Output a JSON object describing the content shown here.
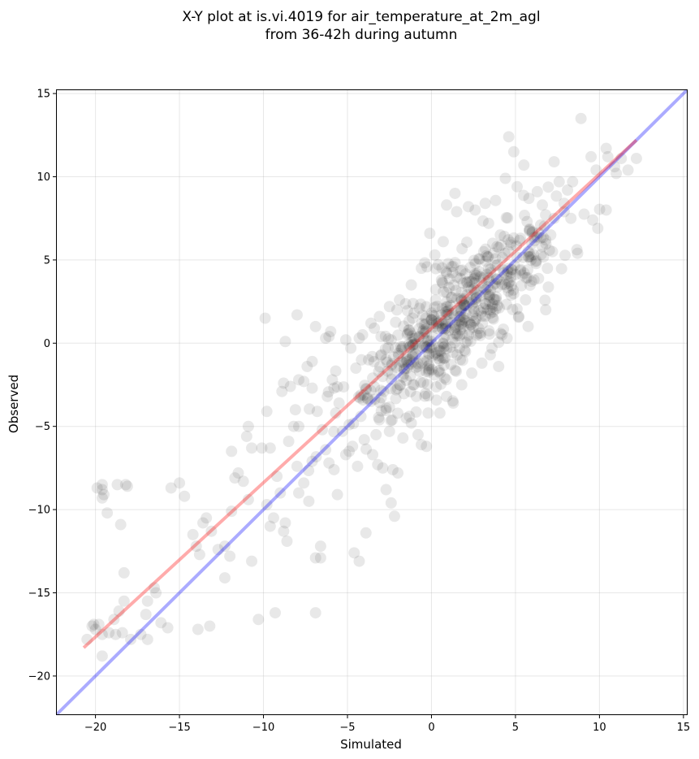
{
  "chart_data": {
    "type": "scatter",
    "title": [
      "X-Y plot at is.vi.4019 for air_temperature_at_2m_agl",
      "from 36-42h during autumn"
    ],
    "xlabel": "Simulated",
    "ylabel": "Observed",
    "xlim": [
      -22.3,
      15.2
    ],
    "ylim": [
      -22.3,
      15.2
    ],
    "xticks": [
      -20,
      -15,
      -10,
      -5,
      0,
      5,
      10,
      15
    ],
    "yticks": [
      -20,
      -15,
      -10,
      -5,
      0,
      5,
      10,
      15
    ],
    "xtick_labels": [
      "−20",
      "−15",
      "−10",
      "−5",
      "0",
      "5",
      "10",
      "15"
    ],
    "ytick_labels": [
      "−20",
      "−15",
      "−10",
      "−5",
      "0",
      "5",
      "10",
      "15"
    ],
    "grid": true,
    "point_color": "#000000",
    "point_opacity": 0.09,
    "reference_line": {
      "from": [
        -22.3,
        -22.3
      ],
      "to": [
        15.2,
        15.2
      ],
      "color": "#0000ff"
    },
    "fit_line": {
      "from": [
        -20.7,
        -18.3
      ],
      "to": [
        12.2,
        12.2
      ],
      "color": "#ff0000"
    },
    "dense_cluster": {
      "center": [
        1.2,
        1.4
      ],
      "spread_x": 2.9,
      "spread_y": 3.1,
      "count": 520
    },
    "points": [
      [
        -20.2,
        -17.0
      ],
      [
        -20.0,
        -17.2
      ],
      [
        -20.5,
        -17.8
      ],
      [
        -19.6,
        -17.5
      ],
      [
        -19.2,
        -17.4
      ],
      [
        -18.8,
        -17.5
      ],
      [
        -18.4,
        -17.4
      ],
      [
        -19.8,
        -16.9
      ],
      [
        -20.1,
        -16.9
      ],
      [
        -19.6,
        -18.8
      ],
      [
        -18.6,
        -16.1
      ],
      [
        -18.3,
        -15.5
      ],
      [
        -18.9,
        -16.6
      ],
      [
        -17.9,
        -17.8
      ],
      [
        -17.3,
        -17.5
      ],
      [
        -16.9,
        -17.8
      ],
      [
        -16.5,
        -14.7
      ],
      [
        -16.9,
        -15.5
      ],
      [
        -16.4,
        -15.0
      ],
      [
        -16.1,
        -16.8
      ],
      [
        -15.7,
        -17.1
      ],
      [
        -17.0,
        -16.3
      ],
      [
        -13.9,
        -17.2
      ],
      [
        -13.2,
        -17.0
      ],
      [
        -10.3,
        -16.6
      ],
      [
        -9.3,
        -16.2
      ],
      [
        -6.9,
        -16.2
      ],
      [
        -19.6,
        -8.5
      ],
      [
        -19.6,
        -8.8
      ],
      [
        -19.9,
        -8.7
      ],
      [
        -19.5,
        -9.1
      ],
      [
        -19.6,
        -9.3
      ],
      [
        -19.3,
        -10.2
      ],
      [
        -18.7,
        -8.5
      ],
      [
        -18.2,
        -8.5
      ],
      [
        -18.1,
        -8.6
      ],
      [
        -18.5,
        -10.9
      ],
      [
        -18.3,
        -13.8
      ],
      [
        -15.5,
        -8.7
      ],
      [
        -15.0,
        -8.4
      ],
      [
        -14.7,
        -9.2
      ],
      [
        -14.2,
        -11.5
      ],
      [
        -14.0,
        -12.2
      ],
      [
        -13.6,
        -10.8
      ],
      [
        -13.8,
        -12.7
      ],
      [
        -13.4,
        -10.5
      ],
      [
        -13.1,
        -11.3
      ],
      [
        -12.7,
        -12.4
      ],
      [
        -12.3,
        -12.2
      ],
      [
        -12.0,
        -12.8
      ],
      [
        -12.3,
        -14.1
      ],
      [
        -11.9,
        -10.1
      ],
      [
        -11.7,
        -8.1
      ],
      [
        -11.5,
        -7.8
      ],
      [
        -11.2,
        -8.3
      ],
      [
        -10.9,
        -9.4
      ],
      [
        -10.7,
        -6.3
      ],
      [
        -10.9,
        -5.0
      ],
      [
        -11.0,
        -5.6
      ],
      [
        -11.9,
        -6.5
      ],
      [
        -10.7,
        -13.1
      ],
      [
        -10.1,
        -6.3
      ],
      [
        -9.8,
        -9.7
      ],
      [
        -9.6,
        -6.3
      ],
      [
        -9.4,
        -10.5
      ],
      [
        -9.2,
        -8.0
      ],
      [
        -9.0,
        -9.0
      ],
      [
        -8.7,
        -10.8
      ],
      [
        -8.8,
        -11.3
      ],
      [
        -8.6,
        -11.9
      ],
      [
        -9.6,
        -11.0
      ],
      [
        -9.8,
        -4.1
      ],
      [
        -8.8,
        -2.4
      ],
      [
        -8.9,
        -2.9
      ],
      [
        -8.4,
        -2.6
      ],
      [
        -8.2,
        -5.0
      ],
      [
        -7.9,
        -5.0
      ],
      [
        -8.1,
        -4.0
      ],
      [
        -7.9,
        -2.2
      ],
      [
        -8.0,
        -7.4
      ],
      [
        -7.6,
        -8.4
      ],
      [
        -7.3,
        -9.5
      ],
      [
        -7.1,
        -7.1
      ],
      [
        -7.9,
        -9.0
      ],
      [
        -8.5,
        -5.9
      ],
      [
        -6.9,
        -12.9
      ],
      [
        -6.6,
        -12.2
      ],
      [
        -6.6,
        -12.9
      ],
      [
        -9.9,
        1.5
      ],
      [
        -8.0,
        1.7
      ],
      [
        -8.7,
        0.1
      ],
      [
        -6.9,
        1.0
      ],
      [
        -6.3,
        0.3
      ],
      [
        -6.0,
        0.7
      ],
      [
        -6.1,
        0.4
      ],
      [
        -7.1,
        -1.1
      ],
      [
        -7.4,
        -1.4
      ],
      [
        -7.6,
        -2.3
      ],
      [
        -7.1,
        -2.7
      ],
      [
        -6.8,
        -4.1
      ],
      [
        -6.5,
        -5.2
      ],
      [
        -6.3,
        -6.4
      ],
      [
        -6.1,
        -7.2
      ],
      [
        -5.8,
        -7.6
      ],
      [
        -5.6,
        -9.1
      ],
      [
        -5.9,
        -2.2
      ],
      [
        -5.7,
        -4.2
      ],
      [
        -5.3,
        -5.3
      ],
      [
        -5.1,
        -6.7
      ],
      [
        -4.9,
        -6.5
      ],
      [
        -4.7,
        -6.2
      ],
      [
        -4.4,
        -7.4
      ],
      [
        -4.6,
        -12.6
      ],
      [
        -4.3,
        -13.1
      ],
      [
        -3.9,
        -11.4
      ],
      [
        -3.5,
        -6.7
      ],
      [
        -3.2,
        -7.3
      ],
      [
        -2.9,
        -7.5
      ],
      [
        -2.7,
        -8.8
      ],
      [
        -2.4,
        -9.6
      ],
      [
        -2.2,
        -10.4
      ],
      [
        -2.3,
        -7.6
      ],
      [
        -2.0,
        -7.8
      ],
      [
        -1.7,
        -5.7
      ],
      [
        -2.5,
        -5.3
      ],
      [
        -5.1,
        0.2
      ],
      [
        -4.3,
        0.3
      ],
      [
        -3.4,
        0.9
      ],
      [
        -3.0,
        0.4
      ],
      [
        -4.8,
        -0.3
      ],
      [
        -4.5,
        -1.5
      ],
      [
        -3.5,
        -2.1
      ],
      [
        -3.8,
        -3.3
      ],
      [
        -3.1,
        -4.6
      ],
      [
        -2.7,
        -3.9
      ],
      [
        -1.5,
        -4.5
      ],
      [
        -1.2,
        -4.8
      ],
      [
        -0.8,
        -5.5
      ],
      [
        -0.6,
        -6.1
      ],
      [
        -0.3,
        -6.2
      ],
      [
        -0.9,
        -3.2
      ],
      [
        -1.1,
        -2.5
      ],
      [
        -0.2,
        -4.2
      ],
      [
        0.5,
        -4.2
      ],
      [
        0.9,
        -3.2
      ],
      [
        1.3,
        -3.6
      ],
      [
        1.8,
        -2.5
      ],
      [
        2.4,
        -1.8
      ],
      [
        3.0,
        -1.2
      ],
      [
        3.5,
        -0.7
      ],
      [
        4.0,
        -1.4
      ],
      [
        3.6,
        -0.3
      ],
      [
        4.2,
        0.5
      ],
      [
        4.5,
        0.3
      ],
      [
        5.2,
        1.6
      ],
      [
        5.6,
        2.6
      ],
      [
        6.1,
        3.8
      ],
      [
        6.9,
        4.5
      ],
      [
        7.2,
        5.5
      ],
      [
        6.8,
        6.2
      ],
      [
        7.3,
        7.5
      ],
      [
        7.9,
        7.9
      ],
      [
        8.3,
        7.5
      ],
      [
        8.7,
        5.4
      ],
      [
        9.6,
        7.4
      ],
      [
        9.9,
        6.9
      ],
      [
        10.4,
        8.0
      ],
      [
        8.9,
        13.5
      ],
      [
        10.4,
        11.7
      ],
      [
        10.5,
        11.2
      ],
      [
        10.9,
        10.6
      ],
      [
        11.0,
        10.2
      ],
      [
        11.3,
        11.1
      ],
      [
        11.7,
        10.4
      ],
      [
        12.2,
        11.1
      ],
      [
        9.5,
        11.2
      ],
      [
        9.8,
        10.4
      ],
      [
        8.4,
        9.7
      ],
      [
        8.1,
        9.2
      ],
      [
        7.3,
        10.9
      ],
      [
        4.6,
        12.4
      ],
      [
        4.9,
        11.5
      ],
      [
        5.5,
        10.7
      ],
      [
        4.4,
        9.9
      ],
      [
        5.1,
        9.4
      ],
      [
        3.2,
        8.4
      ],
      [
        2.6,
        8.0
      ],
      [
        2.2,
        8.2
      ],
      [
        1.4,
        9.0
      ],
      [
        1.5,
        7.9
      ],
      [
        0.9,
        8.3
      ],
      [
        -0.1,
        6.6
      ],
      [
        0.2,
        5.3
      ],
      [
        0.7,
        6.1
      ],
      [
        0.9,
        4.2
      ],
      [
        -0.6,
        4.5
      ],
      [
        -1.2,
        3.5
      ],
      [
        -1.9,
        2.6
      ],
      [
        -2.5,
        2.2
      ],
      [
        -3.1,
        1.6
      ],
      [
        -3.6,
        1.2
      ],
      [
        -4.1,
        0.5
      ],
      [
        -2.4,
        0.2
      ],
      [
        -1.8,
        -0.4
      ],
      [
        -1.3,
        -1.0
      ],
      [
        -0.7,
        -1.7
      ],
      [
        -2.1,
        -2.8
      ],
      [
        -2.9,
        -2.0
      ],
      [
        -3.6,
        -3.5
      ],
      [
        -4.2,
        -4.4
      ],
      [
        -4.9,
        -4.9
      ],
      [
        -5.5,
        -3.6
      ],
      [
        -5.8,
        -2.7
      ],
      [
        -6.2,
        -3.2
      ],
      [
        -4.0,
        -5.8
      ],
      [
        -3.3,
        -5.5
      ],
      [
        5.8,
        8.7
      ],
      [
        6.3,
        9.1
      ],
      [
        6.6,
        8.3
      ],
      [
        7.6,
        9.7
      ],
      [
        7.9,
        8.4
      ],
      [
        6.0,
        6.7
      ],
      [
        6.5,
        7.1
      ],
      [
        5.3,
        6.3
      ],
      [
        5.9,
        5.2
      ],
      [
        6.6,
        5.8
      ],
      [
        7.1,
        6.5
      ],
      [
        4.8,
        4.4
      ],
      [
        5.4,
        4.1
      ],
      [
        4.6,
        3.6
      ],
      [
        6.2,
        4.9
      ],
      [
        3.9,
        5.8
      ],
      [
        4.1,
        6.5
      ],
      [
        3.4,
        7.2
      ]
    ]
  }
}
